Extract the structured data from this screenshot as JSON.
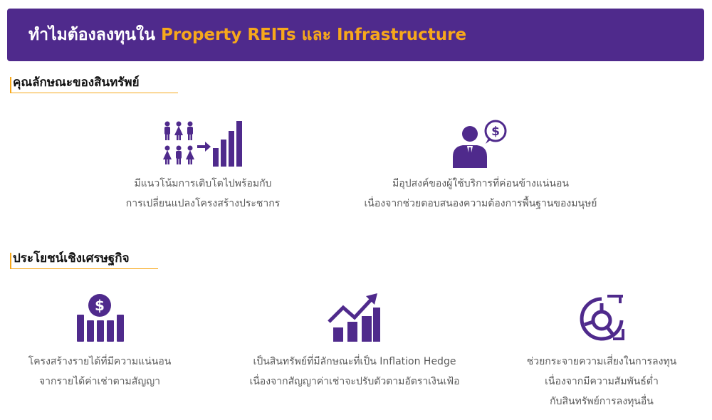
{
  "banner": {
    "title_thai": "ทำไมต้องลงทุนใน",
    "title_accent": "Property REITs และ Infrastructure"
  },
  "section1": {
    "heading": "คุณลักษณะของสินทรัพย์",
    "items": [
      {
        "icon": "population-growth-icon",
        "lines": [
          "มีแนวโน้มการเติบโตไปพร้อมกับ",
          "การเปลี่ยนแปลงโครงสร้างประชากร"
        ]
      },
      {
        "icon": "businessman-dollar-icon",
        "lines": [
          "มีอุปสงค์ของผู้ใช้บริการที่ค่อนข้างแน่นอน",
          "เนื่องจากช่วยตอบสนองความต้องการพื้นฐานของมนุษย์"
        ]
      }
    ]
  },
  "section2": {
    "heading": "ประโยชน์เชิงเศรษฐกิจ",
    "items": [
      {
        "icon": "dollar-bars-icon",
        "lines": [
          "โครงสร้างรายได้ที่มีความแน่นอน",
          "จากรายได้ค่าเช่าตามสัญญา"
        ]
      },
      {
        "icon": "trend-up-chart-icon",
        "lines": [
          "เป็นสินทรัพย์ที่มีลักษณะที่เป็น Inflation Hedge",
          "เนื่องจากสัญญาค่าเช่าจะปรับตัวตามอัตราเงินเฟ้อ"
        ]
      },
      {
        "icon": "diversification-pie-icon",
        "lines": [
          "ช่วยกระจายความเสี่ยงในการลงทุน",
          "เนื่องจากมีความสัมพันธ์ต่ำ",
          "กับสินทรัพย์การลงทุนอื่น"
        ]
      }
    ]
  },
  "colors": {
    "purple": "#4f2a8c",
    "orange": "#f7a81b",
    "text": "#5a5a5a"
  }
}
